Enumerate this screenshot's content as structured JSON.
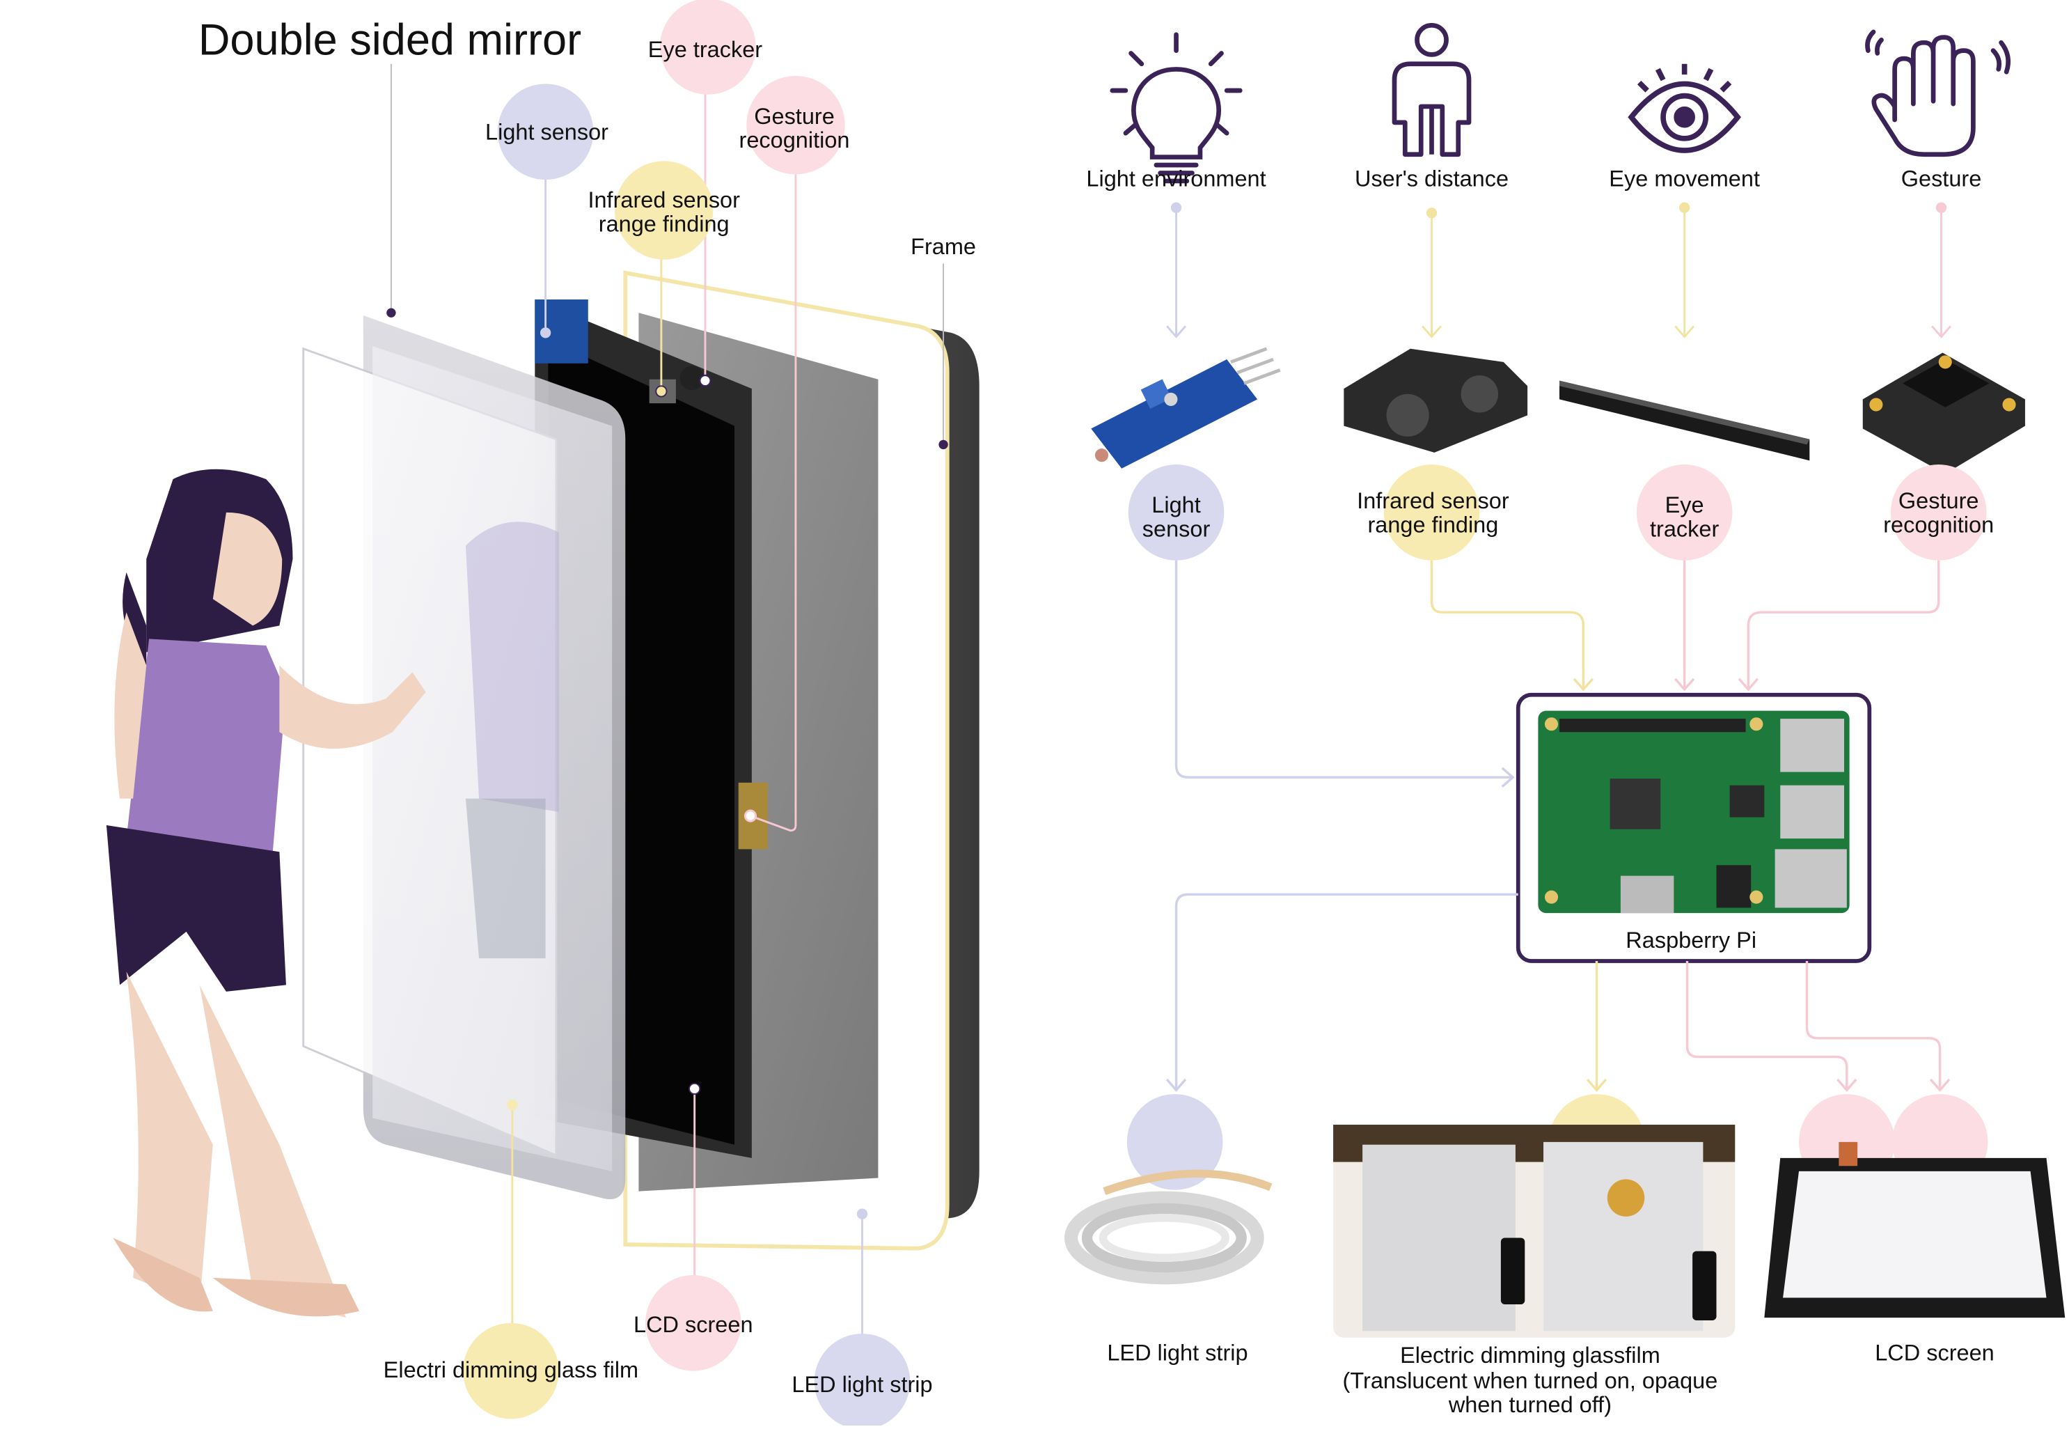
{
  "colors": {
    "lavender": "#d8d8ee",
    "yellow": "#f8ebb2",
    "pink": "#fbdde3",
    "purple_dark": "#3b2257",
    "frame_purple": "#3a2356",
    "board_green": "#1d7a3c",
    "line_lavender": "#cfd0ea",
    "line_yellow": "#f3e3a0",
    "line_pink": "#f6c9d3"
  },
  "left_labels": {
    "double_sided_mirror": "Double sided mirror",
    "light_sensor": "Light sensor",
    "eye_tracker": "Eye tracker",
    "gesture_1": "Gesture",
    "gesture_2": "recognition",
    "infrared_1": "Infrared sensor",
    "infrared_2": "range finding",
    "frame": "Frame",
    "electric_dimming": "Electri dimming glass film",
    "lcd_screen": "LCD screen",
    "led_strip": "LED light strip"
  },
  "inputs": {
    "light_environment": "Light environment",
    "users_distance": "User's distance",
    "eye_movement": "Eye movement",
    "gesture": "Gesture"
  },
  "icons": {
    "light_environment": "lightbulb-icon",
    "users_distance": "person-icon",
    "eye_movement": "eye-icon",
    "gesture": "waving-hand-icon"
  },
  "sensors": {
    "light_1": "Light",
    "light_2": "sensor",
    "infrared_1": "Infrared sensor",
    "infrared_2": "range finding",
    "eye_1": "Eye",
    "eye_2": "tracker",
    "gesture_1": "Gesture",
    "gesture_2": "recognition"
  },
  "controller": {
    "label": "Raspberry Pi"
  },
  "outputs": {
    "led_strip": "LED light strip",
    "dimming_1": "Electric dimming glassfilm",
    "dimming_2": "(Translucent when turned on, opaque",
    "dimming_3": "when turned off)",
    "lcd_screen": "LCD screen"
  }
}
